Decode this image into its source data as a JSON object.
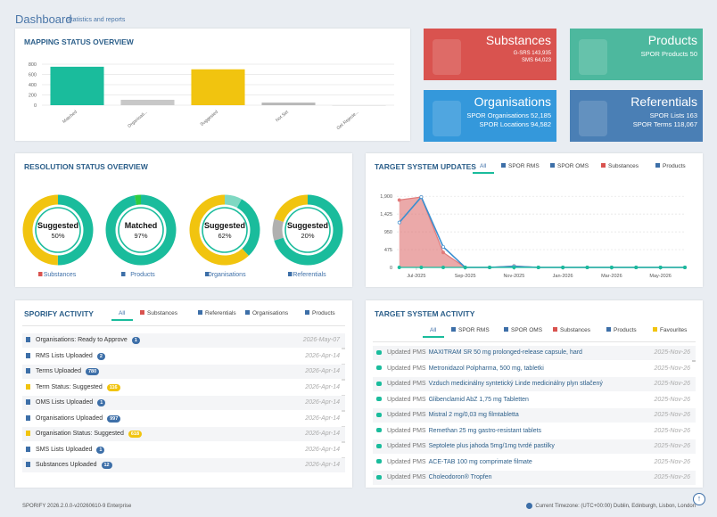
{
  "header": {
    "title": "Dashboard",
    "subtitle": "Statistics and reports"
  },
  "mapping_status": {
    "title": "MAPPING STATUS OVERVIEW",
    "chart": {
      "type": "bar",
      "categories": [
        "Matched",
        "Organisati...",
        "Suggested",
        "Not Set",
        "Get Rejecte..."
      ],
      "values": [
        750,
        105,
        700,
        50,
        0
      ],
      "colors": [
        "#1abc9c",
        "#c8c8c8",
        "#f1c40f",
        "#b8b8b8",
        "#d0d0d0"
      ],
      "ylim": [
        0,
        800
      ],
      "yticks": [
        0,
        200,
        400,
        600,
        800
      ],
      "grid": true
    }
  },
  "tiles": [
    {
      "title": "Substances",
      "lines": [
        "G-SRS 143,935",
        "SMS 64,023"
      ],
      "color": "#d9534f"
    },
    {
      "title": "Products",
      "lines": [
        "SPOR Products 50"
      ],
      "color": "#4db89e"
    },
    {
      "title": "Organisations",
      "lines": [
        "SPOR Organisations 52,185",
        "SPOR Locations 94,582"
      ],
      "color": "#3498db"
    },
    {
      "title": "Referentials",
      "lines": [
        "SPOR Lists 163",
        "SPOR Terms 118,067"
      ],
      "color": "#4a7fb5"
    }
  ],
  "resolution_status": {
    "title": "RESOLUTION STATUS OVERVIEW",
    "donuts": [
      {
        "label": "Substances",
        "center_title": "Suggested",
        "center_text": "50%",
        "segments": [
          50,
          50
        ],
        "colors": [
          "#1abc9c",
          "#f1c40f"
        ]
      },
      {
        "label": "Products",
        "center_title": "Matched",
        "center_text": "97%",
        "segments": [
          97,
          3
        ],
        "colors": [
          "#1abc9c",
          "#2ecc40"
        ]
      },
      {
        "label": "Organisations",
        "center_title": "Suggested",
        "center_text": "62%",
        "segments": [
          8,
          30,
          62
        ],
        "colors": [
          "#7fd8c2",
          "#1abc9c",
          "#f1c40f"
        ]
      },
      {
        "label": "Referentials",
        "center_title": "Suggested",
        "center_text": "20%",
        "segments": [
          70,
          10,
          20
        ],
        "colors": [
          "#1abc9c",
          "#b0b0b0",
          "#f1c40f"
        ]
      }
    ]
  },
  "target_updates": {
    "title": "TARGET SYSTEM UPDATES",
    "tabs": [
      "All",
      "SPOR RMS",
      "SPOR OMS",
      "Substances",
      "Products"
    ],
    "chart": {
      "type": "area",
      "x": [
        -0.7,
        0.2,
        1.1,
        2,
        3,
        4,
        5,
        6,
        7,
        8,
        9,
        10,
        11
      ],
      "series": [
        {
          "color": "#e07b7b",
          "values": [
            1800,
            1880,
            400,
            0,
            0,
            40,
            0,
            0,
            0,
            0,
            0,
            0,
            0
          ]
        },
        {
          "color": "#3a8fd0",
          "values": [
            1200,
            1880,
            550,
            0,
            0,
            30,
            0,
            0,
            0,
            0,
            0,
            0,
            0
          ]
        },
        {
          "color": "#1abc9c",
          "values": [
            0,
            0,
            0,
            0,
            0,
            0,
            0,
            0,
            0,
            0,
            0,
            0,
            0
          ]
        }
      ],
      "ylim": [
        0,
        2000
      ],
      "yticks": [
        0,
        475,
        950,
        {
          "value": 1425,
          "label": "1,425"
        },
        {
          "value": 1900,
          "label": "1,900"
        }
      ],
      "xlim": [
        -0.8,
        11
      ],
      "xticks": [
        {
          "value": 0,
          "label": "Jul-2025"
        },
        {
          "value": 2,
          "label": "Sep-2025"
        },
        {
          "value": 4,
          "label": "Nov-2025"
        },
        {
          "value": 6,
          "label": "Jan-2026"
        },
        {
          "value": 8,
          "label": "Mar-2026"
        },
        {
          "value": 10,
          "label": "May-2026"
        }
      ],
      "grid": true
    }
  },
  "sporify_activity": {
    "title": "SPORIFY ACTIVITY",
    "tabs": [
      "All",
      "Substances",
      "Referentials",
      "Organisations",
      "Products"
    ],
    "items": [
      {
        "text": "Organisations: Ready to Approve",
        "badge": 1,
        "badge_color": "#3d6fa8",
        "date": "2026-May-07"
      },
      {
        "text": "RMS Lists Uploaded",
        "badge": 2,
        "badge_color": "#3d6fa8",
        "date": "2026-Apr-14"
      },
      {
        "text": "Terms Uploaded",
        "badge": 780,
        "badge_color": "#3d6fa8",
        "date": "2026-Apr-14"
      },
      {
        "text": "Term Status: Suggested",
        "badge": 116,
        "badge_color": "#f1c40f",
        "date": "2026-Apr-14"
      },
      {
        "text": "OMS Lists Uploaded",
        "badge": 1,
        "badge_color": "#3d6fa8",
        "date": "2026-Apr-14"
      },
      {
        "text": "Organisations Uploaded",
        "badge": 997,
        "badge_color": "#3d6fa8",
        "date": "2026-Apr-14"
      },
      {
        "text": "Organisation Status: Suggested",
        "badge": 618,
        "badge_color": "#f1c40f",
        "date": "2026-Apr-14"
      },
      {
        "text": "SMS Lists Uploaded",
        "badge": 1,
        "badge_color": "#3d6fa8",
        "date": "2026-Apr-14"
      },
      {
        "text": "Substances Uploaded",
        "badge": 12,
        "badge_color": "#3d6fa8",
        "date": "2026-Apr-14"
      }
    ]
  },
  "target_activity": {
    "title": "TARGET SYSTEM ACTIVITY",
    "tabs": [
      "All",
      "SPOR RMS",
      "SPOR OMS",
      "Substances",
      "Products",
      "Favourites"
    ],
    "items": [
      {
        "prefix": "Updated PMS",
        "text": "MAXITRAM SR 50 mg prolonged-release capsule, hard",
        "date": "2025-Nov-26"
      },
      {
        "prefix": "Updated PMS",
        "text": "Metronidazol Polpharma, 500 mg, tabletki",
        "date": "2025-Nov-26"
      },
      {
        "prefix": "Updated PMS",
        "text": "Vzduch medicinálny syntetický Linde medicinálny plyn stlačený",
        "date": "2025-Nov-26"
      },
      {
        "prefix": "Updated PMS",
        "text": "Glibenclamid AbZ 1,75 mg Tabletten",
        "date": "2025-Nov-26"
      },
      {
        "prefix": "Updated PMS",
        "text": "Mistral 2 mg/0,03 mg filmtabletta",
        "date": "2025-Nov-26"
      },
      {
        "prefix": "Updated PMS",
        "text": "Remethan 25 mg gastro-resistant tablets",
        "date": "2025-Nov-26"
      },
      {
        "prefix": "Updated PMS",
        "text": "Septolete plus jahoda 5mg/1mg tvrdé pastilky",
        "date": "2025-Nov-26"
      },
      {
        "prefix": "Updated PMS",
        "text": "ACE-TAB 100 mg comprimate filmate",
        "date": "2025-Nov-26"
      },
      {
        "prefix": "Updated PMS",
        "text": "Choleodoron® Tropfen",
        "date": "2025-Nov-26"
      }
    ]
  },
  "footer": {
    "version": "SPORIFY 2026.2.0.0-v20260610-9 Enterprise",
    "timezone": "Current Timezone: (UTC+00:00) Dublin, Edinburgh, Lisbon, London"
  }
}
